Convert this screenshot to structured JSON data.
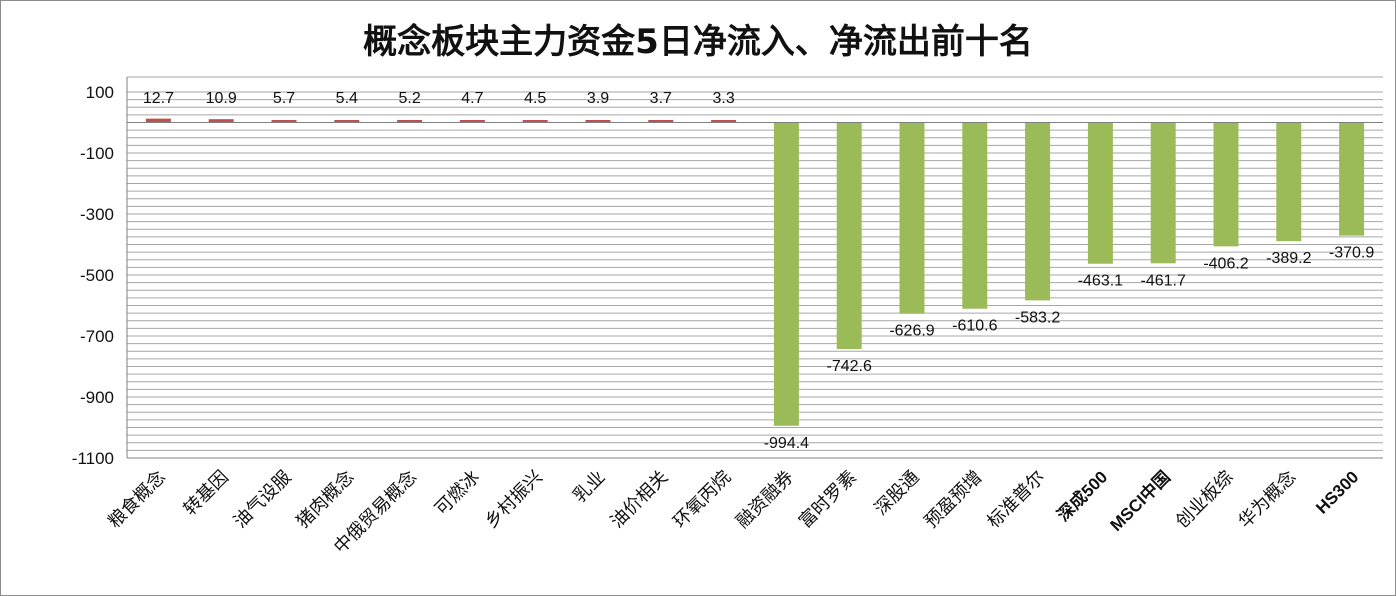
{
  "chart_data": {
    "type": "bar",
    "title": "概念板块主力资金5日净流入、净流出前十名",
    "xlabel": "",
    "ylabel": "",
    "ylim": [
      -1100,
      100
    ],
    "yticks": [
      100,
      -100,
      -300,
      -500,
      -700,
      -900,
      -1100
    ],
    "categories": [
      "粮食概念",
      "转基因",
      "油气设服",
      "猪肉概念",
      "中俄贸易概念",
      "可燃冰",
      "乡村振兴",
      "乳业",
      "油价相关",
      "环氧丙烷",
      "融资融券",
      "富时罗素",
      "深股通",
      "预盈预增",
      "标准普尔",
      "深成500",
      "MSCI中国",
      "创业板综",
      "华为概念",
      "HS300"
    ],
    "values": [
      12.7,
      10.9,
      5.7,
      5.4,
      5.2,
      4.7,
      4.5,
      3.9,
      3.7,
      3.3,
      -994.4,
      -742.6,
      -626.9,
      -610.6,
      -583.2,
      -463.1,
      -461.7,
      -406.2,
      -389.2,
      -370.9
    ],
    "value_labels": [
      "12.7",
      "10.9",
      "5.7",
      "5.4",
      "5.2",
      "4.7",
      "4.5",
      "3.9",
      "3.7",
      "3.3",
      "-994.4",
      "-742.6",
      "-626.9",
      "-610.6",
      "-583.2",
      "-463.1",
      "-461.7",
      "-406.2",
      "-389.2",
      "-370.9"
    ],
    "grid": true,
    "legend": "none",
    "colors": {
      "positive": "#c0504d",
      "negative": "#9bbb59",
      "grid": "#a6a6a6",
      "axis": "#7f7f7f"
    }
  }
}
